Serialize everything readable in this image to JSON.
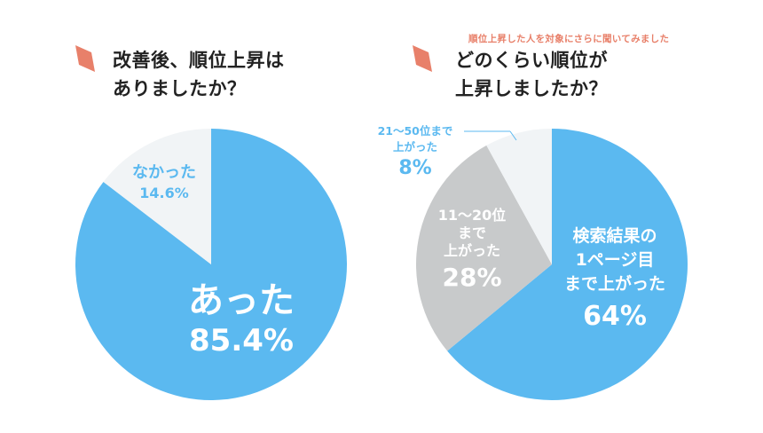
{
  "colors": {
    "blue": "#5bb9f0",
    "light": "#f1f4f6",
    "gray": "#c8cacb",
    "accent": "#e8806a"
  },
  "left": {
    "title_line1": "改善後、順位上昇は",
    "title_line2": "ありましたか？"
  },
  "right": {
    "note": "順位上昇した人を対象にさらに聞いてみました",
    "title_line1": "どのくらい順位が",
    "title_line2": "上昇しましたか？"
  },
  "chart_data": [
    {
      "type": "pie",
      "slices": [
        {
          "label_lines": [
            "あった"
          ],
          "pct_label": "85.4%",
          "value": 85.4
        },
        {
          "label_lines": [
            "なかった"
          ],
          "pct_label": "14.6%",
          "value": 14.6
        }
      ]
    },
    {
      "type": "pie",
      "slices": [
        {
          "label_lines": [
            "検索結果の",
            "1ページ目",
            "まで上がった"
          ],
          "pct_label": "64%",
          "value": 64
        },
        {
          "label_lines": [
            "11～20位",
            "まで",
            "上がった"
          ],
          "pct_label": "28%",
          "value": 28
        },
        {
          "label_lines": [
            "21～50位まで",
            "上がった"
          ],
          "pct_label": "8%",
          "value": 8
        }
      ]
    }
  ]
}
